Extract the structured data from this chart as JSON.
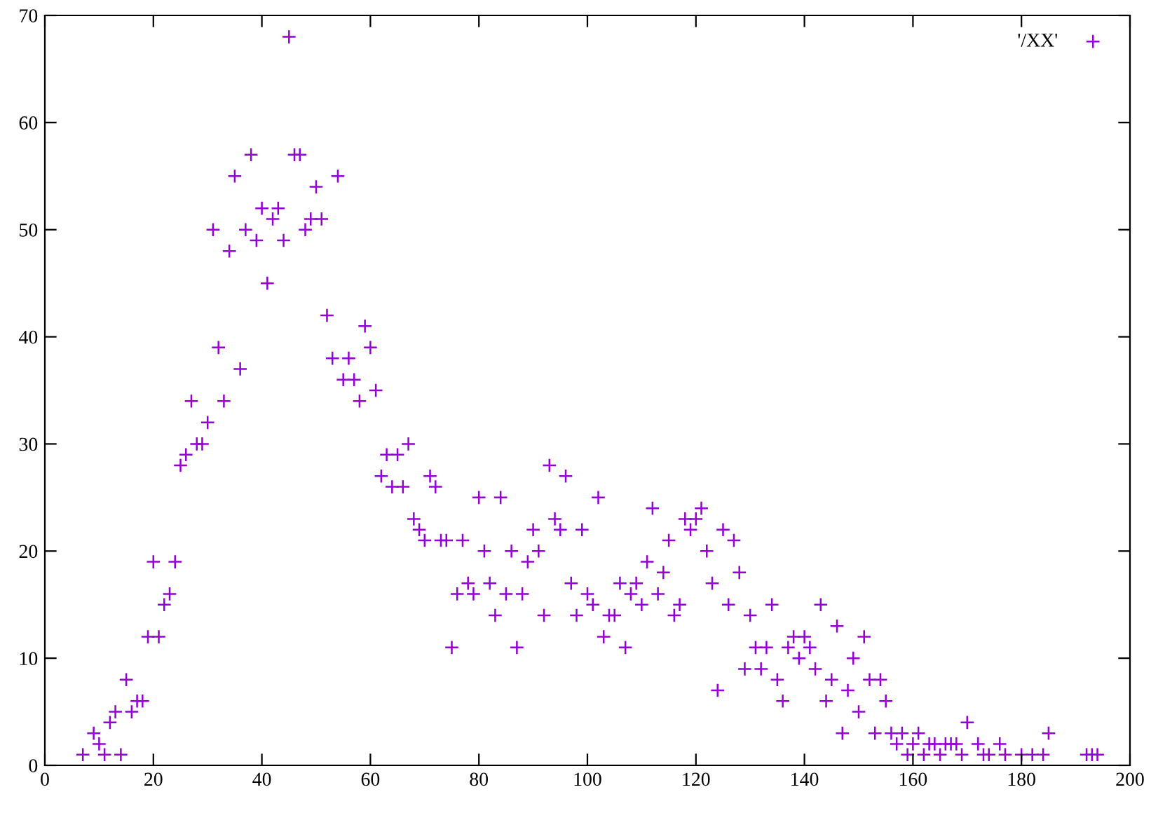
{
  "chart_data": {
    "type": "scatter",
    "xlim": [
      0,
      200
    ],
    "ylim": [
      0,
      70
    ],
    "xticks": [
      0,
      20,
      40,
      60,
      80,
      100,
      120,
      140,
      160,
      180,
      200
    ],
    "yticks": [
      0,
      10,
      20,
      30,
      40,
      50,
      60,
      70
    ],
    "grid": false,
    "legend": "top right",
    "marker": "cross",
    "series": [
      {
        "name": "'/XX'",
        "color": "#9400d3",
        "x": [
          7,
          9,
          10,
          11,
          12,
          13,
          14,
          15,
          16,
          17,
          18,
          19,
          20,
          21,
          22,
          23,
          24,
          25,
          26,
          27,
          28,
          29,
          30,
          31,
          32,
          33,
          34,
          35,
          36,
          37,
          38,
          39,
          40,
          41,
          42,
          43,
          44,
          45,
          46,
          47,
          48,
          49,
          50,
          51,
          52,
          53,
          54,
          55,
          56,
          57,
          58,
          59,
          60,
          61,
          62,
          63,
          64,
          65,
          66,
          67,
          68,
          69,
          70,
          71,
          72,
          73,
          74,
          75,
          76,
          77,
          78,
          79,
          80,
          81,
          82,
          83,
          84,
          85,
          86,
          87,
          88,
          89,
          90,
          91,
          92,
          93,
          94,
          95,
          96,
          97,
          98,
          99,
          100,
          101,
          102,
          103,
          104,
          105,
          106,
          107,
          108,
          109,
          110,
          111,
          112,
          113,
          114,
          115,
          116,
          117,
          118,
          119,
          120,
          121,
          122,
          123,
          124,
          125,
          126,
          127,
          128,
          129,
          130,
          131,
          132,
          133,
          134,
          135,
          136,
          137,
          138,
          139,
          140,
          141,
          142,
          143,
          144,
          145,
          146,
          147,
          148,
          149,
          150,
          151,
          152,
          153,
          154,
          155,
          156,
          157,
          158,
          159,
          160,
          161,
          162,
          163,
          164,
          165,
          166,
          167,
          168,
          169,
          170,
          172,
          173,
          174,
          176,
          177,
          180,
          182,
          184,
          185,
          192,
          193,
          194
        ],
        "values": [
          1,
          3,
          2,
          1,
          4,
          5,
          1,
          8,
          5,
          6,
          6,
          12,
          19,
          12,
          15,
          16,
          19,
          28,
          29,
          34,
          30,
          30,
          32,
          50,
          39,
          34,
          48,
          55,
          37,
          50,
          57,
          49,
          52,
          45,
          51,
          52,
          49,
          68,
          57,
          57,
          50,
          51,
          54,
          51,
          42,
          38,
          55,
          36,
          38,
          36,
          34,
          41,
          39,
          35,
          27,
          29,
          26,
          29,
          26,
          30,
          23,
          22,
          21,
          27,
          26,
          21,
          21,
          11,
          16,
          21,
          17,
          16,
          25,
          20,
          17,
          14,
          25,
          16,
          20,
          11,
          16,
          19,
          22,
          20,
          14,
          28,
          23,
          22,
          27,
          17,
          14,
          22,
          16,
          15,
          25,
          12,
          14,
          14,
          17,
          11,
          16,
          17,
          15,
          19,
          24,
          16,
          18,
          21,
          14,
          15,
          23,
          22,
          23,
          24,
          20,
          17,
          7,
          22,
          15,
          21,
          18,
          9,
          14,
          11,
          9,
          11,
          15,
          8,
          6,
          11,
          12,
          10,
          12,
          11,
          9,
          15,
          6,
          8,
          13,
          3,
          7,
          10,
          5,
          12,
          8,
          3,
          8,
          6,
          3,
          2,
          3,
          1,
          2,
          3,
          1,
          2,
          2,
          1,
          2,
          2,
          2,
          1,
          4,
          2,
          1,
          1,
          2,
          1,
          1,
          1,
          1,
          3,
          1,
          1,
          1
        ]
      }
    ]
  }
}
